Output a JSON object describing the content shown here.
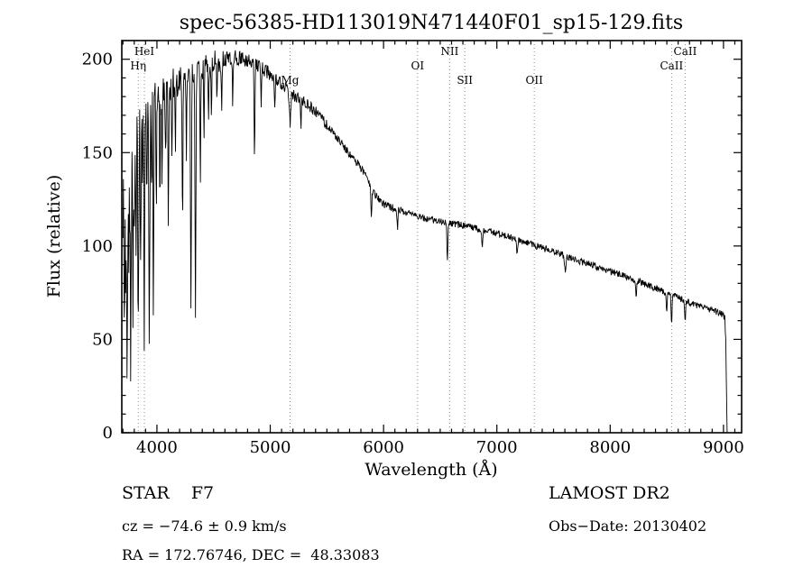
{
  "footer": {
    "class_label": "STAR    F7",
    "survey": "LAMOST DR2",
    "cz": "cz = −74.6 ± 0.9 km/s",
    "obs_date": "Obs−Date: 20130402",
    "coords": "RA = 172.76746, DEC =  48.33083"
  },
  "chart_data": {
    "type": "line",
    "title": "spec-56385-HD113019N471440F01_sp15-129.fits",
    "xlabel": "Wavelength (Å)",
    "ylabel": "Flux (relative)",
    "xlim": [
      3690,
      9160
    ],
    "ylim": [
      0,
      210
    ],
    "xticks": [
      4000,
      5000,
      6000,
      7000,
      8000,
      9000
    ],
    "yticks": [
      0,
      50,
      100,
      150,
      200
    ],
    "x_minor_step": 100,
    "y_minor_step": 10,
    "grid": false,
    "legend": "none",
    "line_color": "#000000",
    "feature_line_color": "#8a8a8a",
    "features": [
      {
        "label": "HeI",
        "wavelength": 3889,
        "row": 1
      },
      {
        "label": "Hη",
        "wavelength": 3835,
        "row": 2
      },
      {
        "label": "Mg",
        "wavelength": 5175,
        "row": 3
      },
      {
        "label": "NII",
        "wavelength": 6583,
        "row": 1
      },
      {
        "label": "OI",
        "wavelength": 6300,
        "row": 2
      },
      {
        "label": "SII",
        "wavelength": 6717,
        "row": 3
      },
      {
        "label": "OII",
        "wavelength": 7330,
        "row": 3
      },
      {
        "label": "CaII",
        "wavelength": 8662,
        "row": 1
      },
      {
        "label": "CaII",
        "wavelength": 8542,
        "row": 2
      }
    ],
    "spectrum": {
      "sample_step": 4,
      "noise_seed": 20130402,
      "anchors": [
        [
          3700,
          115
        ],
        [
          3720,
          124
        ],
        [
          3740,
          130
        ],
        [
          3760,
          135
        ],
        [
          3780,
          141
        ],
        [
          3800,
          147
        ],
        [
          3830,
          152
        ],
        [
          3860,
          158
        ],
        [
          3890,
          163
        ],
        [
          3920,
          167
        ],
        [
          3950,
          170
        ],
        [
          3980,
          174
        ],
        [
          4000,
          177
        ],
        [
          4060,
          181
        ],
        [
          4120,
          185
        ],
        [
          4180,
          188
        ],
        [
          4240,
          191
        ],
        [
          4300,
          193
        ],
        [
          4360,
          195
        ],
        [
          4420,
          196
        ],
        [
          4480,
          198
        ],
        [
          4550,
          199
        ],
        [
          4620,
          200
        ],
        [
          4700,
          201
        ],
        [
          4780,
          200
        ],
        [
          4860,
          198
        ],
        [
          4940,
          195
        ],
        [
          5020,
          191
        ],
        [
          5100,
          187
        ],
        [
          5175,
          182
        ],
        [
          5250,
          179
        ],
        [
          5320,
          176
        ],
        [
          5400,
          172
        ],
        [
          5480,
          166
        ],
        [
          5560,
          160
        ],
        [
          5640,
          154
        ],
        [
          5720,
          148
        ],
        [
          5800,
          142
        ],
        [
          5860,
          135
        ],
        [
          5920,
          128
        ],
        [
          5980,
          123
        ],
        [
          6050,
          121
        ],
        [
          6150,
          119
        ],
        [
          6250,
          117
        ],
        [
          6350,
          115
        ],
        [
          6450,
          113.5
        ],
        [
          6550,
          112.5
        ],
        [
          6650,
          111.5
        ],
        [
          6750,
          110.5
        ],
        [
          6850,
          109
        ],
        [
          6950,
          107.5
        ],
        [
          7050,
          106
        ],
        [
          7150,
          104
        ],
        [
          7250,
          102
        ],
        [
          7350,
          100
        ],
        [
          7450,
          98
        ],
        [
          7550,
          96
        ],
        [
          7650,
          93.5
        ],
        [
          7750,
          91.5
        ],
        [
          7850,
          89.5
        ],
        [
          7950,
          87.5
        ],
        [
          8050,
          85.5
        ],
        [
          8150,
          83.5
        ],
        [
          8250,
          81
        ],
        [
          8350,
          78.5
        ],
        [
          8450,
          76
        ],
        [
          8550,
          73.5
        ],
        [
          8650,
          71
        ],
        [
          8750,
          68.5
        ],
        [
          8850,
          66.5
        ],
        [
          8950,
          64.5
        ],
        [
          9000,
          63
        ],
        [
          9012,
          61
        ],
        [
          9020,
          50
        ],
        [
          9028,
          15
        ],
        [
          9032,
          0
        ]
      ],
      "noise_regions": [
        [
          3690,
          3790,
          28
        ],
        [
          3790,
          3990,
          20
        ],
        [
          3990,
          4200,
          9
        ],
        [
          4200,
          4600,
          6.5
        ],
        [
          4600,
          5000,
          4
        ],
        [
          5000,
          5500,
          3.2
        ],
        [
          5500,
          6200,
          2.2
        ],
        [
          6200,
          7600,
          1.8
        ],
        [
          7600,
          9160,
          1.8
        ]
      ],
      "absorption_lines": [
        [
          3712,
          70,
          3
        ],
        [
          3727,
          55,
          3
        ],
        [
          3737,
          95,
          3
        ],
        [
          3752,
          60,
          3
        ],
        [
          3770,
          105,
          3
        ],
        [
          3788,
          70,
          3
        ],
        [
          3800,
          55,
          3
        ],
        [
          3815,
          45,
          3
        ],
        [
          3835,
          95,
          3.5
        ],
        [
          3856,
          55,
          3
        ],
        [
          3873,
          45,
          3
        ],
        [
          3889,
          105,
          3.5
        ],
        [
          3910,
          50,
          3
        ],
        [
          3933,
          115,
          3.5
        ],
        [
          3952,
          45,
          3
        ],
        [
          3968,
          95,
          3.5
        ],
        [
          3995,
          50,
          3
        ],
        [
          4026,
          55,
          3
        ],
        [
          4045,
          45,
          3
        ],
        [
          4077,
          40,
          3
        ],
        [
          4101,
          70,
          3.5
        ],
        [
          4132,
          35,
          3
        ],
        [
          4163,
          40,
          3
        ],
        [
          4226,
          80,
          3.5
        ],
        [
          4260,
          45,
          3
        ],
        [
          4300,
          125,
          4
        ],
        [
          4340,
          130,
          4
        ],
        [
          4383,
          60,
          3
        ],
        [
          4415,
          40,
          3
        ],
        [
          4455,
          30,
          3
        ],
        [
          4481,
          35,
          3
        ],
        [
          4530,
          25,
          3
        ],
        [
          4571,
          22,
          3
        ],
        [
          4668,
          22,
          3
        ],
        [
          4861,
          50,
          3.5
        ],
        [
          4920,
          20,
          3
        ],
        [
          5040,
          18,
          3
        ],
        [
          5175,
          16,
          6
        ],
        [
          5270,
          14,
          4
        ],
        [
          5893,
          16,
          4
        ],
        [
          6122,
          10,
          4
        ],
        [
          6563,
          20,
          4
        ],
        [
          6870,
          9,
          5
        ],
        [
          7180,
          8,
          5
        ],
        [
          7605,
          10,
          6
        ],
        [
          8230,
          8,
          4
        ],
        [
          8498,
          9,
          4
        ],
        [
          8542,
          15,
          4
        ],
        [
          8662,
          13,
          4
        ]
      ]
    }
  }
}
